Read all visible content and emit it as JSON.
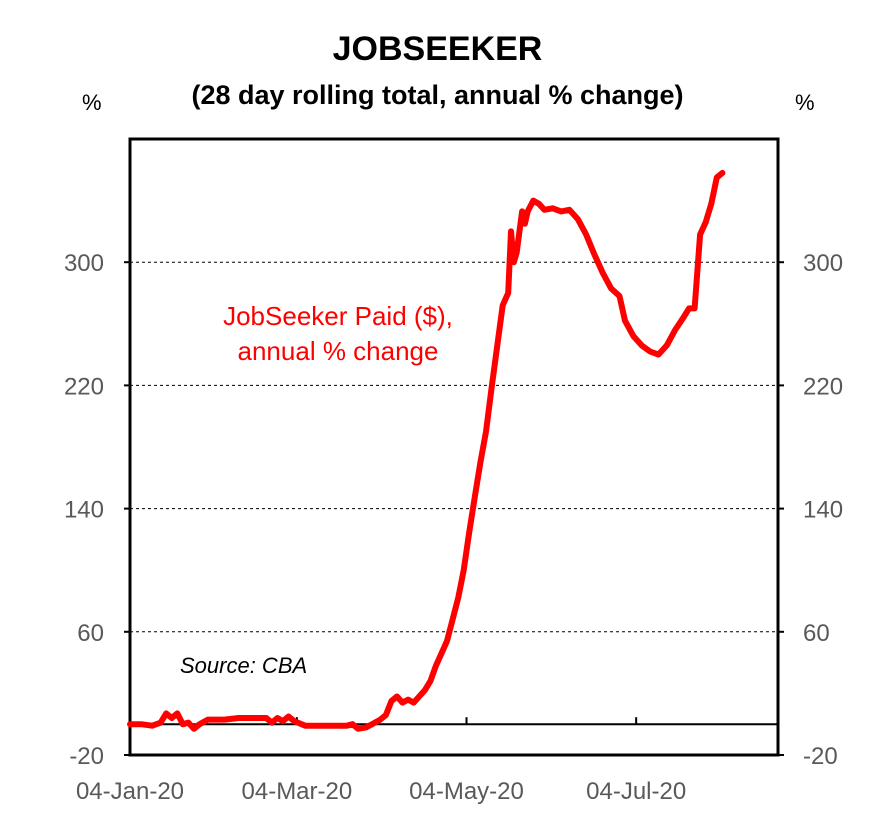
{
  "chart_data": {
    "type": "line",
    "title": "JOBSEEKER",
    "subtitle": "(28 day rolling total, annual % change)",
    "left_unit": "%",
    "right_unit": "%",
    "ylim": [
      -20,
      380
    ],
    "yticks": [
      -20,
      60,
      140,
      220,
      300
    ],
    "xlim": [
      "2020-01-04",
      "2020-08-24"
    ],
    "xticks": [
      {
        "date": "2020-01-04",
        "label": "04-Jan-20"
      },
      {
        "date": "2020-03-04",
        "label": "04-Mar-20"
      },
      {
        "date": "2020-05-04",
        "label": "04-May-20"
      },
      {
        "date": "2020-07-04",
        "label": "04-Jul-20"
      }
    ],
    "grid": "horizontal dashed",
    "annotation": [
      "JobSeeker Paid ($),",
      "annual % change"
    ],
    "source": "Source: CBA",
    "line_color": "#ff0000",
    "series": [
      {
        "points": [
          [
            "2020-01-04",
            0
          ],
          [
            "2020-01-08",
            0
          ],
          [
            "2020-01-12",
            -1
          ],
          [
            "2020-01-15",
            1
          ],
          [
            "2020-01-17",
            7
          ],
          [
            "2020-01-19",
            4
          ],
          [
            "2020-01-21",
            7
          ],
          [
            "2020-01-23",
            0
          ],
          [
            "2020-01-25",
            1
          ],
          [
            "2020-01-27",
            -3
          ],
          [
            "2020-01-29",
            0
          ],
          [
            "2020-02-01",
            3
          ],
          [
            "2020-02-03",
            3
          ],
          [
            "2020-02-07",
            3
          ],
          [
            "2020-02-12",
            4
          ],
          [
            "2020-02-18",
            4
          ],
          [
            "2020-02-22",
            4
          ],
          [
            "2020-02-24",
            1
          ],
          [
            "2020-02-26",
            4
          ],
          [
            "2020-02-28",
            2
          ],
          [
            "2020-03-01",
            5
          ],
          [
            "2020-03-03",
            2
          ],
          [
            "2020-03-07",
            -1
          ],
          [
            "2020-03-12",
            -1
          ],
          [
            "2020-03-18",
            -1
          ],
          [
            "2020-03-22",
            -1
          ],
          [
            "2020-03-24",
            0
          ],
          [
            "2020-03-26",
            -3
          ],
          [
            "2020-03-29",
            -2
          ],
          [
            "2020-03-31",
            0
          ],
          [
            "2020-04-03",
            3
          ],
          [
            "2020-04-05",
            6
          ],
          [
            "2020-04-07",
            15
          ],
          [
            "2020-04-09",
            18
          ],
          [
            "2020-04-11",
            14
          ],
          [
            "2020-04-13",
            16
          ],
          [
            "2020-04-15",
            14
          ],
          [
            "2020-04-17",
            18
          ],
          [
            "2020-04-19",
            22
          ],
          [
            "2020-04-21",
            28
          ],
          [
            "2020-04-23",
            38
          ],
          [
            "2020-04-25",
            46
          ],
          [
            "2020-04-27",
            54
          ],
          [
            "2020-04-29",
            68
          ],
          [
            "2020-05-01",
            82
          ],
          [
            "2020-05-03",
            100
          ],
          [
            "2020-05-05",
            125
          ],
          [
            "2020-05-07",
            148
          ],
          [
            "2020-05-09",
            170
          ],
          [
            "2020-05-11",
            190
          ],
          [
            "2020-05-13",
            218
          ],
          [
            "2020-05-15",
            245
          ],
          [
            "2020-05-17",
            272
          ],
          [
            "2020-05-19",
            280
          ],
          [
            "2020-05-20",
            320
          ],
          [
            "2020-05-21",
            300
          ],
          [
            "2020-05-22",
            306
          ],
          [
            "2020-05-24",
            333
          ],
          [
            "2020-05-25",
            325
          ],
          [
            "2020-05-26",
            333
          ],
          [
            "2020-05-28",
            340
          ],
          [
            "2020-05-30",
            338
          ],
          [
            "2020-06-01",
            334
          ],
          [
            "2020-06-04",
            335
          ],
          [
            "2020-06-07",
            333
          ],
          [
            "2020-06-10",
            334
          ],
          [
            "2020-06-13",
            328
          ],
          [
            "2020-06-16",
            318
          ],
          [
            "2020-06-19",
            305
          ],
          [
            "2020-06-22",
            293
          ],
          [
            "2020-06-25",
            283
          ],
          [
            "2020-06-28",
            278
          ],
          [
            "2020-06-30",
            262
          ],
          [
            "2020-07-03",
            252
          ],
          [
            "2020-07-06",
            246
          ],
          [
            "2020-07-09",
            242
          ],
          [
            "2020-07-12",
            240
          ],
          [
            "2020-07-15",
            246
          ],
          [
            "2020-07-18",
            256
          ],
          [
            "2020-07-21",
            264
          ],
          [
            "2020-07-23",
            270
          ],
          [
            "2020-07-25",
            270
          ],
          [
            "2020-07-27",
            318
          ],
          [
            "2020-07-29",
            326
          ],
          [
            "2020-07-31",
            338
          ],
          [
            "2020-08-02",
            355
          ],
          [
            "2020-08-04",
            358
          ]
        ]
      }
    ]
  }
}
